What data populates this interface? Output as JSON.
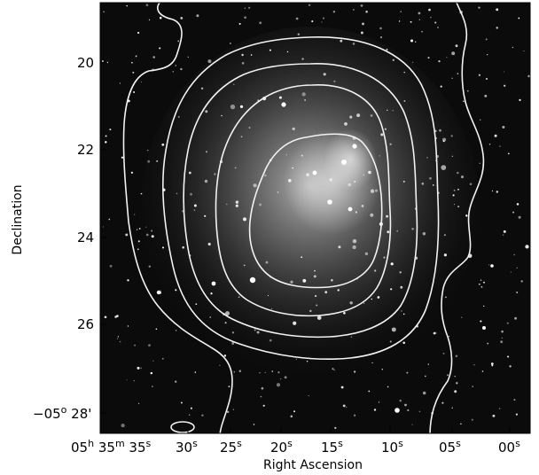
{
  "figure": {
    "xlabel": "Right Ascension",
    "ylabel": "Declination",
    "x_ticks": [
      {
        "label": "05h 35m 35s",
        "parts": [
          {
            "t": "05"
          },
          {
            "t": "h",
            "sup": true
          },
          {
            "t": " 35"
          },
          {
            "t": "m",
            "sup": true
          },
          {
            "t": " 35"
          },
          {
            "t": "s",
            "sup": true
          }
        ]
      },
      {
        "label": "35s 30s",
        "parts": [
          {
            "t": "30"
          },
          {
            "t": "s",
            "sup": true
          }
        ]
      },
      {
        "label": "25s",
        "parts": [
          {
            "t": "25"
          },
          {
            "t": "s",
            "sup": true
          }
        ]
      },
      {
        "label": "20s",
        "parts": [
          {
            "t": "20"
          },
          {
            "t": "s",
            "sup": true
          }
        ]
      },
      {
        "label": "15s",
        "parts": [
          {
            "t": "15"
          },
          {
            "t": "s",
            "sup": true
          }
        ]
      },
      {
        "label": "10s",
        "parts": [
          {
            "t": "10"
          },
          {
            "t": "s",
            "sup": true
          }
        ]
      },
      {
        "label": "05s",
        "parts": [
          {
            "t": "05"
          },
          {
            "t": "s",
            "sup": true
          }
        ]
      },
      {
        "label": "00s",
        "parts": [
          {
            "t": "00"
          },
          {
            "t": "s",
            "sup": true
          }
        ]
      }
    ],
    "y_ticks": [
      {
        "label": "20",
        "parts": [
          {
            "t": "20"
          }
        ]
      },
      {
        "label": "22",
        "parts": [
          {
            "t": "22"
          }
        ]
      },
      {
        "label": "24",
        "parts": [
          {
            "t": "24"
          }
        ]
      },
      {
        "label": "26",
        "parts": [
          {
            "t": "26"
          }
        ]
      },
      {
        "label": "-05o 28'",
        "parts": [
          {
            "t": "−05"
          },
          {
            "t": "o",
            "sup": true
          },
          {
            "t": " 28'"
          }
        ]
      }
    ],
    "contour_count": 5,
    "colors": {
      "image_bg": "#0b0b0b",
      "contour": "#f2f2f2",
      "nebula": "#d8d8d8"
    }
  }
}
